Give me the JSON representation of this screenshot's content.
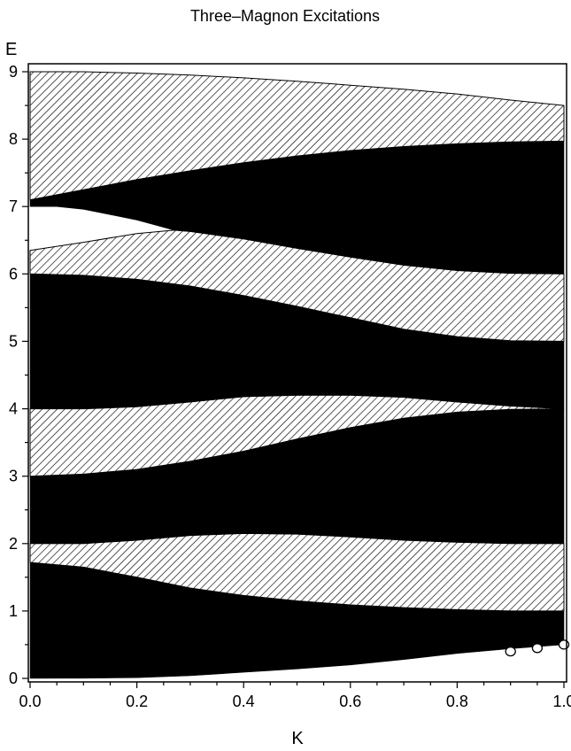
{
  "chart_data": {
    "type": "area",
    "title": "Three–Magnon Excitations",
    "xlabel": "K",
    "ylabel": "E",
    "xlim": [
      0,
      1
    ],
    "ylim": [
      0,
      9
    ],
    "x_ticks": [
      "0.0",
      "0.2",
      "0.4",
      "0.6",
      "0.8",
      "1.0"
    ],
    "y_ticks": [
      "0",
      "1",
      "2",
      "3",
      "4",
      "5",
      "6",
      "7",
      "8",
      "9"
    ],
    "grid": false,
    "legend": "none",
    "colors": {
      "solid": "#000000",
      "hatch": "#000000",
      "background": "#ffffff"
    },
    "bands": [
      {
        "fill": "solid",
        "lower": [
          [
            0,
            0
          ],
          [
            0.1,
            0.003
          ],
          [
            0.2,
            0.01
          ],
          [
            0.3,
            0.04
          ],
          [
            0.4,
            0.09
          ],
          [
            0.5,
            0.14
          ],
          [
            0.6,
            0.2
          ],
          [
            0.7,
            0.28
          ],
          [
            0.8,
            0.37
          ],
          [
            0.9,
            0.44
          ],
          [
            1.0,
            0.5
          ]
        ],
        "upper": [
          [
            0,
            1.72
          ],
          [
            0.1,
            1.65
          ],
          [
            0.2,
            1.5
          ],
          [
            0.3,
            1.34
          ],
          [
            0.4,
            1.23
          ],
          [
            0.5,
            1.15
          ],
          [
            0.6,
            1.09
          ],
          [
            0.7,
            1.05
          ],
          [
            0.8,
            1.02
          ],
          [
            0.9,
            1.0
          ],
          [
            1.0,
            1.0
          ]
        ]
      },
      {
        "fill": "hatch",
        "lower": [
          [
            0,
            1.72
          ],
          [
            0.1,
            1.65
          ],
          [
            0.2,
            1.5
          ],
          [
            0.3,
            1.34
          ],
          [
            0.4,
            1.23
          ],
          [
            0.5,
            1.15
          ],
          [
            0.6,
            1.09
          ],
          [
            0.7,
            1.05
          ],
          [
            0.8,
            1.02
          ],
          [
            0.9,
            1.0
          ],
          [
            1.0,
            1.0
          ]
        ],
        "upper": [
          [
            0,
            2.0
          ],
          [
            0.1,
            2.0
          ],
          [
            0.2,
            2.05
          ],
          [
            0.3,
            2.12
          ],
          [
            0.4,
            2.15
          ],
          [
            0.5,
            2.14
          ],
          [
            0.6,
            2.1
          ],
          [
            0.7,
            2.05
          ],
          [
            0.8,
            2.02
          ],
          [
            0.9,
            2.0
          ],
          [
            1.0,
            2.0
          ]
        ]
      },
      {
        "fill": "solid",
        "lower": [
          [
            0,
            2.0
          ],
          [
            0.1,
            2.0
          ],
          [
            0.2,
            2.05
          ],
          [
            0.3,
            2.12
          ],
          [
            0.4,
            2.15
          ],
          [
            0.5,
            2.14
          ],
          [
            0.6,
            2.1
          ],
          [
            0.7,
            2.05
          ],
          [
            0.8,
            2.02
          ],
          [
            0.9,
            2.0
          ],
          [
            1.0,
            2.0
          ]
        ],
        "upper": [
          [
            0,
            3.0
          ],
          [
            0.1,
            3.03
          ],
          [
            0.2,
            3.1
          ],
          [
            0.3,
            3.22
          ],
          [
            0.4,
            3.37
          ],
          [
            0.5,
            3.55
          ],
          [
            0.6,
            3.72
          ],
          [
            0.7,
            3.86
          ],
          [
            0.8,
            3.95
          ],
          [
            0.9,
            3.99
          ],
          [
            1.0,
            4.0
          ]
        ]
      },
      {
        "fill": "hatch",
        "lower": [
          [
            0,
            3.0
          ],
          [
            0.1,
            3.03
          ],
          [
            0.2,
            3.1
          ],
          [
            0.3,
            3.22
          ],
          [
            0.4,
            3.37
          ],
          [
            0.5,
            3.55
          ],
          [
            0.6,
            3.72
          ],
          [
            0.7,
            3.86
          ],
          [
            0.8,
            3.95
          ],
          [
            0.9,
            3.99
          ],
          [
            1.0,
            4.0
          ]
        ],
        "upper": [
          [
            0,
            4.0
          ],
          [
            0.1,
            4.0
          ],
          [
            0.2,
            4.03
          ],
          [
            0.3,
            4.1
          ],
          [
            0.4,
            4.18
          ],
          [
            0.5,
            4.2
          ],
          [
            0.6,
            4.2
          ],
          [
            0.7,
            4.17
          ],
          [
            0.8,
            4.1
          ],
          [
            0.9,
            4.04
          ],
          [
            1.0,
            4.0
          ]
        ]
      },
      {
        "fill": "solid",
        "lower": [
          [
            0,
            4.0
          ],
          [
            0.1,
            4.0
          ],
          [
            0.2,
            4.03
          ],
          [
            0.3,
            4.1
          ],
          [
            0.4,
            4.18
          ],
          [
            0.5,
            4.2
          ],
          [
            0.6,
            4.2
          ],
          [
            0.7,
            4.17
          ],
          [
            0.8,
            4.1
          ],
          [
            0.9,
            4.04
          ],
          [
            1.0,
            4.0
          ]
        ],
        "upper": [
          [
            0,
            6.0
          ],
          [
            0.1,
            5.98
          ],
          [
            0.2,
            5.92
          ],
          [
            0.3,
            5.82
          ],
          [
            0.4,
            5.68
          ],
          [
            0.5,
            5.52
          ],
          [
            0.6,
            5.35
          ],
          [
            0.7,
            5.18
          ],
          [
            0.8,
            5.07
          ],
          [
            0.9,
            5.01
          ],
          [
            1.0,
            5.0
          ]
        ]
      },
      {
        "fill": "hatch",
        "lower": [
          [
            0,
            6.0
          ],
          [
            0.1,
            5.98
          ],
          [
            0.2,
            5.92
          ],
          [
            0.3,
            5.82
          ],
          [
            0.4,
            5.68
          ],
          [
            0.5,
            5.52
          ],
          [
            0.6,
            5.35
          ],
          [
            0.7,
            5.18
          ],
          [
            0.8,
            5.07
          ],
          [
            0.9,
            5.01
          ],
          [
            1.0,
            5.0
          ]
        ],
        "upper": [
          [
            0,
            6.35
          ],
          [
            0.1,
            6.47
          ],
          [
            0.2,
            6.6
          ],
          [
            0.27,
            6.65
          ],
          [
            0.3,
            6.63
          ],
          [
            0.4,
            6.52
          ],
          [
            0.5,
            6.38
          ],
          [
            0.6,
            6.25
          ],
          [
            0.7,
            6.13
          ],
          [
            0.8,
            6.05
          ],
          [
            0.9,
            6.01
          ],
          [
            1.0,
            6.0
          ]
        ]
      },
      {
        "fill": "solid",
        "lower": [
          [
            0,
            7.0
          ],
          [
            0.05,
            7.0
          ],
          [
            0.1,
            6.96
          ],
          [
            0.2,
            6.8
          ],
          [
            0.27,
            6.65
          ],
          [
            0.3,
            6.63
          ],
          [
            0.4,
            6.52
          ],
          [
            0.5,
            6.38
          ],
          [
            0.6,
            6.25
          ],
          [
            0.7,
            6.13
          ],
          [
            0.8,
            6.05
          ],
          [
            0.9,
            6.01
          ],
          [
            1.0,
            6.0
          ]
        ],
        "upper": [
          [
            0,
            7.1
          ],
          [
            0.1,
            7.25
          ],
          [
            0.2,
            7.4
          ],
          [
            0.3,
            7.53
          ],
          [
            0.4,
            7.65
          ],
          [
            0.5,
            7.75
          ],
          [
            0.6,
            7.83
          ],
          [
            0.7,
            7.89
          ],
          [
            0.8,
            7.93
          ],
          [
            0.9,
            7.96
          ],
          [
            1.0,
            7.97
          ]
        ]
      },
      {
        "fill": "hatch",
        "lower": [
          [
            0,
            7.1
          ],
          [
            0.1,
            7.25
          ],
          [
            0.2,
            7.4
          ],
          [
            0.3,
            7.53
          ],
          [
            0.4,
            7.65
          ],
          [
            0.5,
            7.75
          ],
          [
            0.6,
            7.83
          ],
          [
            0.7,
            7.89
          ],
          [
            0.8,
            7.93
          ],
          [
            0.9,
            7.96
          ],
          [
            1.0,
            7.97
          ]
        ],
        "upper": [
          [
            0,
            9.0
          ],
          [
            0.1,
            9.0
          ],
          [
            0.2,
            8.98
          ],
          [
            0.3,
            8.95
          ],
          [
            0.4,
            8.91
          ],
          [
            0.5,
            8.86
          ],
          [
            0.6,
            8.8
          ],
          [
            0.7,
            8.74
          ],
          [
            0.8,
            8.67
          ],
          [
            0.9,
            8.58
          ],
          [
            1.0,
            8.5
          ]
        ]
      }
    ],
    "markers": [
      {
        "x": 0.9,
        "y": 0.4
      },
      {
        "x": 0.95,
        "y": 0.45
      },
      {
        "x": 1.0,
        "y": 0.5
      }
    ]
  }
}
